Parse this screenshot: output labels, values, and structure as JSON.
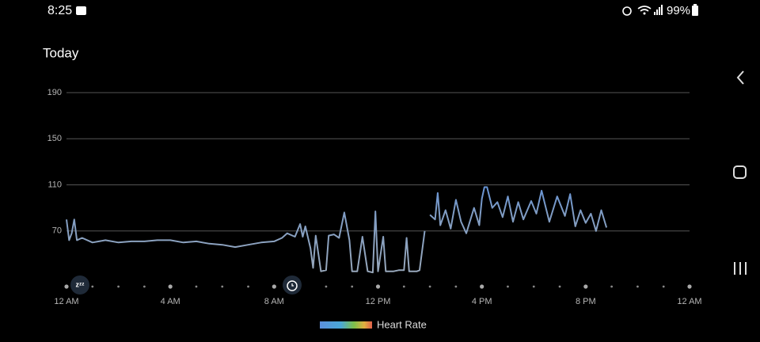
{
  "status_bar": {
    "time": "8:25",
    "battery": "99%"
  },
  "chart_data": {
    "type": "line",
    "title": "Today",
    "x": [
      0,
      0.1,
      0.2,
      0.3,
      0.4,
      0.6,
      1,
      1.5,
      2,
      2.5,
      3,
      3.5,
      4,
      4.5,
      5,
      5.5,
      6,
      6.5,
      7,
      7.5,
      8,
      8.3,
      8.5,
      8.8,
      9,
      9.1,
      9.2,
      9.4,
      9.5,
      9.6,
      9.8,
      10,
      10.1,
      10.3,
      10.5,
      10.7,
      10.9,
      11,
      11.2,
      11.4,
      11.6,
      11.8,
      11.9,
      12,
      12.2,
      12.3,
      12.6,
      12.8,
      13,
      13.1,
      13.2,
      13.5,
      13.6,
      13.8,
      13.9,
      14,
      14.2,
      14.3,
      14.4,
      14.6,
      14.8,
      15,
      15.2,
      15.4,
      15.7,
      15.9,
      16,
      16.1,
      16.2,
      16.4,
      16.6,
      16.8,
      17,
      17.2,
      17.4,
      17.6,
      17.9,
      18.1,
      18.3,
      18.6,
      18.9,
      19.2,
      19.4,
      19.6,
      19.8,
      20,
      20.2,
      20.4,
      20.6,
      20.8
    ],
    "series": [
      {
        "name": "Heart Rate",
        "color": "#5b8fdc",
        "values": [
          80,
          62,
          68,
          80,
          62,
          64,
          60,
          62,
          60,
          61,
          61,
          62,
          62,
          60,
          61,
          59,
          58,
          56,
          58,
          60,
          61,
          64,
          68,
          65,
          76,
          65,
          74,
          55,
          38,
          66,
          35,
          36,
          66,
          67,
          64,
          86,
          62,
          35,
          35,
          65,
          35,
          34,
          87,
          35,
          65,
          35,
          35,
          36,
          36,
          64,
          35,
          35,
          36,
          70,
          null,
          84,
          80,
          103,
          75,
          88,
          72,
          97,
          78,
          68,
          90,
          75,
          98,
          108,
          108,
          90,
          95,
          82,
          100,
          78,
          95,
          80,
          96,
          85,
          105,
          78,
          100,
          83,
          102,
          74,
          88,
          77,
          85,
          70,
          88,
          73
        ]
      }
    ],
    "xlim": [
      0,
      24
    ],
    "ylim": [
      30,
      190
    ],
    "xticks": [
      {
        "value": 0,
        "label": "12 AM"
      },
      {
        "value": 4,
        "label": "4 AM"
      },
      {
        "value": 8,
        "label": "8 AM"
      },
      {
        "value": 12,
        "label": "12 PM"
      },
      {
        "value": 16,
        "label": "4 PM"
      },
      {
        "value": 20,
        "label": "8 PM"
      },
      {
        "value": 24,
        "label": "12 AM"
      }
    ],
    "x_dots": [
      0,
      1,
      2,
      3,
      4,
      5,
      6,
      7,
      8,
      9,
      10,
      11,
      12,
      13,
      14,
      15,
      16,
      17,
      18,
      19,
      20,
      21,
      22,
      23,
      24
    ],
    "yticks": [
      70,
      110,
      150,
      190
    ],
    "grid": true
  }
}
